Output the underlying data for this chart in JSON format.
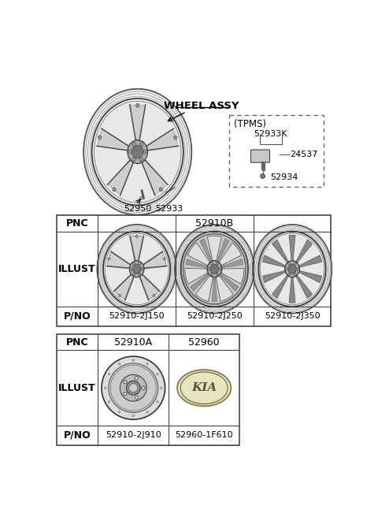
{
  "bg_color": "#ffffff",
  "top_label": "WHEEL ASSY",
  "tpms_label": "(TPMS)",
  "tpms_parts": [
    "52933K",
    "24537",
    "52934"
  ],
  "top_parts": [
    "52950",
    "52933"
  ],
  "table1_pnc": "52910B",
  "table1_pno": [
    "52910-2J150",
    "52910-2J250",
    "52910-2J350"
  ],
  "table2_pnc": [
    "52910A",
    "52960"
  ],
  "table2_pno": [
    "52910-2J910",
    "52960-1F610"
  ],
  "line_color": "#333333",
  "light_gray": "#bbbbbb",
  "mid_gray": "#888888",
  "dark_gray": "#444444"
}
